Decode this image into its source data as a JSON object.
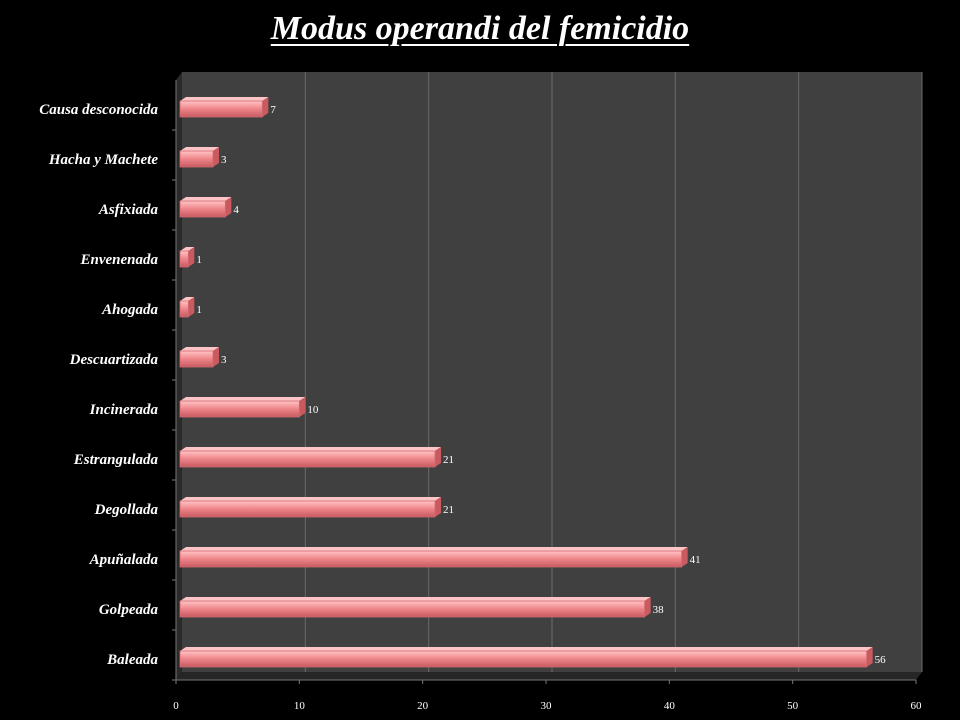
{
  "chart_data": {
    "type": "bar",
    "orientation": "horizontal",
    "title": "Modus operandi del femicidio",
    "categories": [
      "Baleada",
      "Golpeada",
      "Apuñalada",
      "Degollada",
      "Estrangulada",
      "Incinerada",
      "Descuartizada",
      "Ahogada",
      "Envenenada",
      "Asfixiada",
      "Hacha y Machete",
      "Causa desconocida"
    ],
    "values": [
      56,
      38,
      41,
      21,
      21,
      10,
      3,
      1,
      1,
      4,
      3,
      7
    ],
    "xlim": [
      0,
      60
    ],
    "xticks": [
      0,
      10,
      20,
      30,
      40,
      50,
      60
    ],
    "grid": true,
    "legend": "none",
    "colors": {
      "bar": "#f08a8e",
      "bar_light": "#ffc4c6",
      "bar_dark": "#c85a60",
      "plot_bg": "#404040",
      "gridline": "#6a6a6a",
      "background": "#000000",
      "text": "#ffffff"
    }
  }
}
